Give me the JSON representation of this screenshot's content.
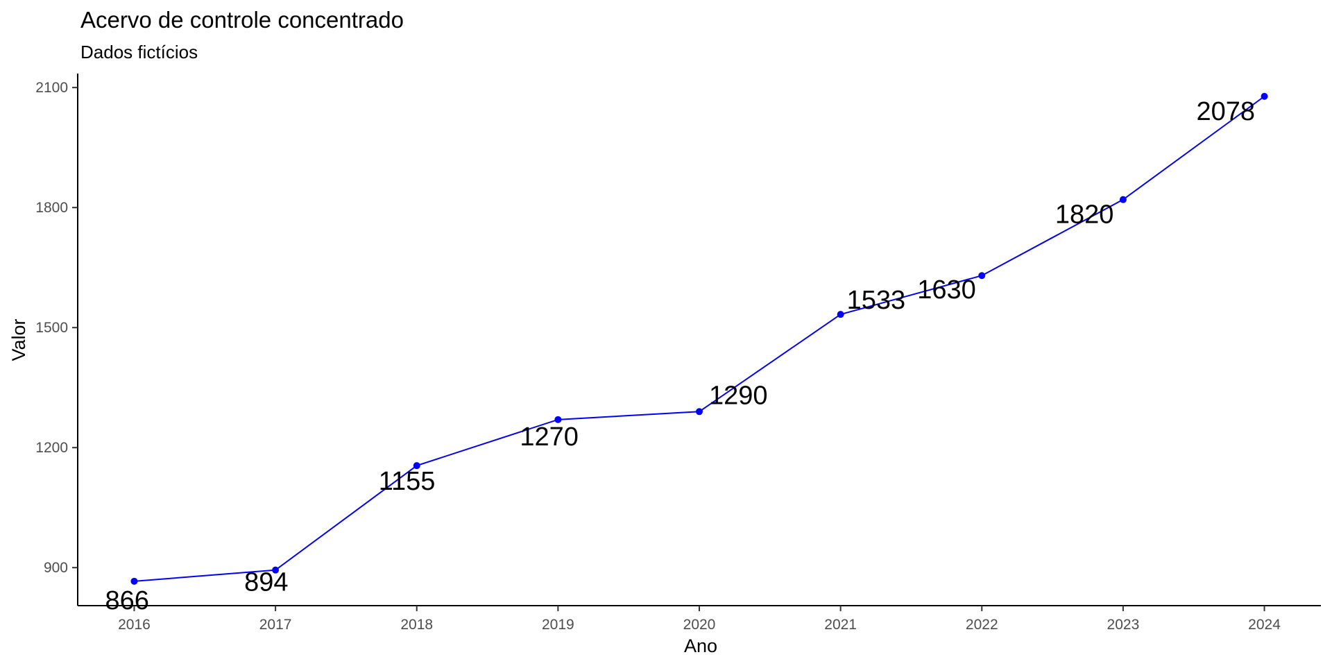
{
  "chart_data": {
    "type": "line",
    "title": "Acervo de controle concentrado",
    "subtitle": "Dados fictícios",
    "xlabel": "Ano",
    "ylabel": "Valor",
    "x": [
      2016,
      2017,
      2018,
      2019,
      2020,
      2021,
      2022,
      2023,
      2024
    ],
    "series": [
      {
        "values": [
          866,
          894,
          1155,
          1270,
          1290,
          1533,
          1630,
          1820,
          2078
        ]
      }
    ],
    "data_labels": [
      "866",
      "894",
      "1155",
      "1270",
      "1290",
      "1533",
      "1630",
      "1820",
      "2078"
    ],
    "x_ticks": [
      "2016",
      "2017",
      "2018",
      "2019",
      "2020",
      "2021",
      "2022",
      "2023",
      "2024"
    ],
    "y_ticks": [
      "900",
      "1200",
      "1500",
      "1800",
      "2100"
    ],
    "xlim": [
      2015.6,
      2024.4
    ],
    "ylim": [
      805,
      2135
    ],
    "grid": false,
    "legend": "none",
    "colors": {
      "line": "#0000ff",
      "point": "#0000ff",
      "axis": "#000000",
      "tick_text": "#4d4d4d"
    }
  }
}
